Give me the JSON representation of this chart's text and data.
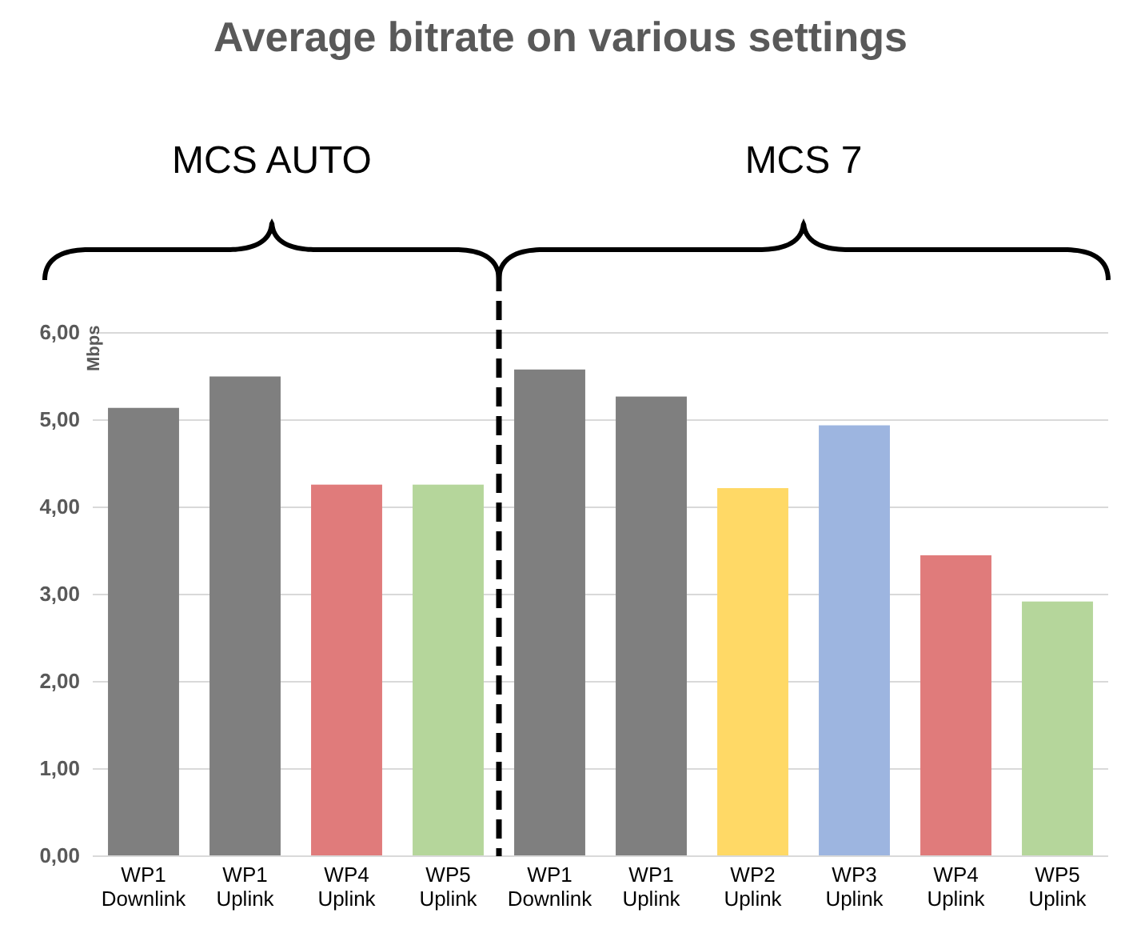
{
  "chart_data": {
    "type": "bar",
    "title": "Average bitrate on various settings",
    "ylabel": "Mbps",
    "categories": [
      "WP1 Downlink",
      "WP1 Uplink",
      "WP4 Uplink",
      "WP5 Uplink",
      "WP1 Downlink",
      "WP1 Uplink",
      "WP2 Uplink",
      "WP3 Uplink",
      "WP4 Uplink",
      "WP5 Uplink"
    ],
    "values": [
      5.14,
      5.5,
      4.26,
      4.26,
      5.58,
      5.27,
      4.22,
      4.94,
      3.45,
      2.92
    ],
    "colors": [
      "#7f7f7f",
      "#7f7f7f",
      "#e07b7b",
      "#b5d69b",
      "#7f7f7f",
      "#7f7f7f",
      "#ffd966",
      "#9db5e0",
      "#e07b7b",
      "#b5d69b"
    ],
    "ylim": [
      0,
      6
    ],
    "yticks": [
      {
        "value": 0,
        "label": "0,00"
      },
      {
        "value": 1,
        "label": "1,00"
      },
      {
        "value": 2,
        "label": "2,00"
      },
      {
        "value": 3,
        "label": "3,00"
      },
      {
        "value": 4,
        "label": "4,00"
      },
      {
        "value": 5,
        "label": "5,00"
      },
      {
        "value": 6,
        "label": "6,00"
      }
    ],
    "grid": "y",
    "annotations": [
      "MCS AUTO",
      "MCS 7"
    ]
  }
}
